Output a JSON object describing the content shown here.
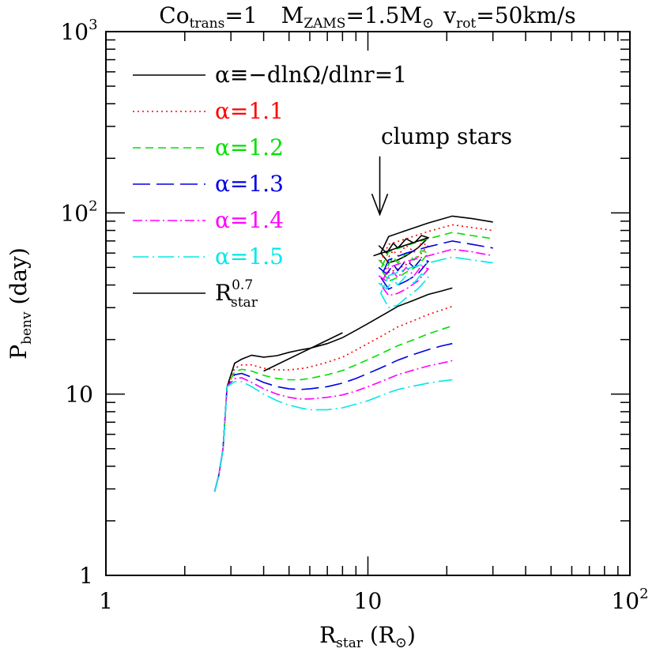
{
  "chart_data": {
    "type": "line",
    "title": {
      "co_prefix": "Co",
      "co_sub": "trans",
      "co_value": "=1",
      "m_prefix": "M",
      "m_sub": "ZAMS",
      "m_value": "=1.5M",
      "m_sun": "⊙",
      "v_prefix": "v",
      "v_sub": "rot",
      "v_value": "=50km/s"
    },
    "xlabel": {
      "main": "R",
      "sub": "star",
      "unit_open": " (R",
      "unit_sun": "⊙",
      "unit_close": ")"
    },
    "ylabel": {
      "main": "P",
      "sub": "benv",
      "unit": " (day)"
    },
    "x_scale": "log",
    "y_scale": "log",
    "xlim": [
      1,
      100
    ],
    "ylim": [
      1,
      1000
    ],
    "x_ticks": [
      {
        "value": 1,
        "base": "1",
        "exp": ""
      },
      {
        "value": 10,
        "base": "10",
        "exp": ""
      },
      {
        "value": 100,
        "base": "10",
        "exp": "2"
      }
    ],
    "y_ticks": [
      {
        "value": 1,
        "base": "1",
        "exp": ""
      },
      {
        "value": 10,
        "base": "10",
        "exp": ""
      },
      {
        "value": 100,
        "base": "10",
        "exp": "2"
      },
      {
        "value": 1000,
        "base": "10",
        "exp": "3"
      }
    ],
    "grid": false,
    "legend_position": "top-left",
    "annotation": {
      "text": "clump stars",
      "arrow_from": [
        11.1,
        205
      ],
      "arrow_to": [
        11.1,
        98
      ]
    },
    "series": [
      {
        "name": "α≡−dlnΩ/dlnr=1",
        "color": "#000000",
        "dash": "none",
        "rgb": [
          [
            2.6,
            2.9
          ],
          [
            2.7,
            3.6
          ],
          [
            2.8,
            5.0
          ],
          [
            2.9,
            11.0
          ],
          [
            3.1,
            14.8
          ],
          [
            3.3,
            15.6
          ],
          [
            3.6,
            16.4
          ],
          [
            4.0,
            16.0
          ],
          [
            4.5,
            16.3
          ],
          [
            5.0,
            17.0
          ],
          [
            5.5,
            17.5
          ],
          [
            6.0,
            17.9
          ],
          [
            7.0,
            19.0
          ],
          [
            8.0,
            20.5
          ],
          [
            9.0,
            22.5
          ],
          [
            10.0,
            24.5
          ],
          [
            11.0,
            26.5
          ],
          [
            12.0,
            28.5
          ],
          [
            13.0,
            30.5
          ],
          [
            15.0,
            33.0
          ],
          [
            17.0,
            35.5
          ],
          [
            19.0,
            37.0
          ],
          [
            21.0,
            38.5
          ]
        ],
        "clump": [
          [
            11.0,
            66.0
          ],
          [
            11.8,
            60.0
          ],
          [
            12.5,
            68.0
          ],
          [
            13.0,
            64.0
          ],
          [
            14.0,
            72.0
          ],
          [
            15.0,
            68.0
          ],
          [
            16.0,
            75.0
          ],
          [
            17.0,
            73.0
          ],
          [
            15.5,
            64.0
          ],
          [
            14.0,
            58.0
          ],
          [
            13.0,
            55.0
          ],
          [
            12.0,
            53.0
          ],
          [
            11.2,
            60.0
          ],
          [
            12.0,
            74.0
          ],
          [
            14.0,
            80.0
          ],
          [
            17.0,
            88.0
          ],
          [
            21.0,
            96.0
          ],
          [
            25.0,
            93.0
          ],
          [
            30.0,
            89.0
          ]
        ]
      },
      {
        "name": "α=1.1",
        "color": "#ff0000",
        "dash": "2 4",
        "rgb": [
          [
            2.6,
            2.9
          ],
          [
            2.7,
            3.6
          ],
          [
            2.8,
            5.0
          ],
          [
            2.9,
            11.0
          ],
          [
            3.1,
            13.9
          ],
          [
            3.3,
            14.5
          ],
          [
            3.6,
            14.5
          ],
          [
            4.0,
            13.9
          ],
          [
            4.5,
            13.6
          ],
          [
            5.0,
            13.6
          ],
          [
            5.5,
            13.8
          ],
          [
            6.0,
            14.1
          ],
          [
            7.0,
            15.0
          ],
          [
            8.0,
            16.0
          ],
          [
            9.0,
            17.5
          ],
          [
            10.0,
            19.0
          ],
          [
            11.0,
            20.5
          ],
          [
            12.0,
            22.0
          ],
          [
            13.0,
            23.5
          ],
          [
            15.0,
            25.5
          ],
          [
            17.0,
            27.5
          ],
          [
            19.0,
            29.0
          ],
          [
            21.0,
            30.5
          ]
        ],
        "clump": [
          [
            11.0,
            60.0
          ],
          [
            11.8,
            55.0
          ],
          [
            12.5,
            62.0
          ],
          [
            13.0,
            58.0
          ],
          [
            14.0,
            66.0
          ],
          [
            15.0,
            61.0
          ],
          [
            16.0,
            68.0
          ],
          [
            17.0,
            66.0
          ],
          [
            15.5,
            57.0
          ],
          [
            14.0,
            52.0
          ],
          [
            13.0,
            49.0
          ],
          [
            12.0,
            47.0
          ],
          [
            11.2,
            54.0
          ],
          [
            12.0,
            67.0
          ],
          [
            14.0,
            72.0
          ],
          [
            17.0,
            79.0
          ],
          [
            21.0,
            86.0
          ],
          [
            25.0,
            83.0
          ],
          [
            30.0,
            80.0
          ]
        ]
      },
      {
        "name": "α=1.2",
        "color": "#00e000",
        "dash": "10 6",
        "rgb": [
          [
            2.6,
            2.9
          ],
          [
            2.7,
            3.6
          ],
          [
            2.8,
            5.0
          ],
          [
            2.9,
            11.0
          ],
          [
            3.1,
            13.3
          ],
          [
            3.3,
            13.7
          ],
          [
            3.6,
            13.4
          ],
          [
            4.0,
            12.7
          ],
          [
            4.5,
            12.2
          ],
          [
            5.0,
            12.0
          ],
          [
            5.5,
            12.0
          ],
          [
            6.0,
            12.2
          ],
          [
            7.0,
            12.8
          ],
          [
            8.0,
            13.5
          ],
          [
            9.0,
            14.5
          ],
          [
            10.0,
            15.5
          ],
          [
            11.0,
            16.5
          ],
          [
            12.0,
            17.5
          ],
          [
            13.0,
            18.5
          ],
          [
            15.0,
            20.0
          ],
          [
            17.0,
            21.5
          ],
          [
            19.0,
            22.7
          ],
          [
            21.0,
            23.8
          ]
        ],
        "clump": [
          [
            11.0,
            55.0
          ],
          [
            11.8,
            50.0
          ],
          [
            12.5,
            57.0
          ],
          [
            13.0,
            53.0
          ],
          [
            14.0,
            60.0
          ],
          [
            15.0,
            55.0
          ],
          [
            16.0,
            62.0
          ],
          [
            17.0,
            60.0
          ],
          [
            15.5,
            51.0
          ],
          [
            14.0,
            47.0
          ],
          [
            13.0,
            44.0
          ],
          [
            12.0,
            42.0
          ],
          [
            11.2,
            49.0
          ],
          [
            12.0,
            61.0
          ],
          [
            14.0,
            66.0
          ],
          [
            17.0,
            72.0
          ],
          [
            21.0,
            78.0
          ],
          [
            25.0,
            75.0
          ],
          [
            30.0,
            72.0
          ]
        ]
      },
      {
        "name": "α=1.3",
        "color": "#0000e0",
        "dash": "22 8",
        "rgb": [
          [
            2.6,
            2.9
          ],
          [
            2.7,
            3.6
          ],
          [
            2.8,
            5.0
          ],
          [
            2.9,
            11.0
          ],
          [
            3.1,
            12.8
          ],
          [
            3.3,
            13.0
          ],
          [
            3.6,
            12.4
          ],
          [
            4.0,
            11.6
          ],
          [
            4.5,
            11.0
          ],
          [
            5.0,
            10.7
          ],
          [
            5.5,
            10.6
          ],
          [
            6.0,
            10.7
          ],
          [
            7.0,
            11.0
          ],
          [
            8.0,
            11.5
          ],
          [
            9.0,
            12.2
          ],
          [
            10.0,
            13.0
          ],
          [
            11.0,
            13.8
          ],
          [
            12.0,
            14.6
          ],
          [
            13.0,
            15.4
          ],
          [
            15.0,
            16.6
          ],
          [
            17.0,
            17.6
          ],
          [
            19.0,
            18.4
          ],
          [
            21.0,
            19.0
          ]
        ],
        "clump": [
          [
            11.0,
            50.0
          ],
          [
            11.8,
            46.0
          ],
          [
            12.5,
            52.0
          ],
          [
            13.0,
            48.0
          ],
          [
            14.0,
            55.0
          ],
          [
            15.0,
            50.0
          ],
          [
            16.0,
            56.0
          ],
          [
            17.0,
            54.0
          ],
          [
            15.5,
            46.0
          ],
          [
            14.0,
            42.0
          ],
          [
            13.0,
            40.0
          ],
          [
            12.0,
            38.0
          ],
          [
            11.2,
            44.0
          ],
          [
            12.0,
            55.0
          ],
          [
            14.0,
            60.0
          ],
          [
            17.0,
            65.0
          ],
          [
            21.0,
            70.0
          ],
          [
            25.0,
            67.0
          ],
          [
            30.0,
            64.0
          ]
        ]
      },
      {
        "name": "α=1.4",
        "color": "#ff00ff",
        "dash": "12 4 2 4",
        "rgb": [
          [
            2.6,
            2.9
          ],
          [
            2.7,
            3.6
          ],
          [
            2.8,
            5.0
          ],
          [
            2.9,
            11.0
          ],
          [
            3.1,
            12.2
          ],
          [
            3.3,
            12.3
          ],
          [
            3.6,
            11.6
          ],
          [
            4.0,
            10.7
          ],
          [
            4.5,
            10.0
          ],
          [
            5.0,
            9.6
          ],
          [
            5.5,
            9.4
          ],
          [
            6.0,
            9.4
          ],
          [
            7.0,
            9.6
          ],
          [
            8.0,
            9.9
          ],
          [
            9.0,
            10.4
          ],
          [
            10.0,
            11.0
          ],
          [
            11.0,
            11.6
          ],
          [
            12.0,
            12.2
          ],
          [
            13.0,
            12.8
          ],
          [
            15.0,
            13.6
          ],
          [
            17.0,
            14.3
          ],
          [
            19.0,
            14.8
          ],
          [
            21.0,
            15.3
          ]
        ],
        "clump": [
          [
            11.0,
            45.0
          ],
          [
            11.8,
            42.0
          ],
          [
            12.5,
            47.0
          ],
          [
            13.0,
            44.0
          ],
          [
            14.0,
            50.0
          ],
          [
            15.0,
            45.0
          ],
          [
            16.0,
            51.0
          ],
          [
            17.0,
            49.0
          ],
          [
            15.5,
            42.0
          ],
          [
            14.0,
            38.0
          ],
          [
            13.0,
            36.0
          ],
          [
            12.0,
            35.0
          ],
          [
            11.2,
            40.0
          ],
          [
            12.0,
            50.0
          ],
          [
            14.0,
            54.0
          ],
          [
            17.0,
            58.0
          ],
          [
            21.0,
            63.0
          ],
          [
            25.0,
            61.0
          ],
          [
            30.0,
            58.0
          ]
        ]
      },
      {
        "name": "α=1.5",
        "color": "#00e8e8",
        "dash": "20 5 2 5",
        "rgb": [
          [
            2.6,
            2.9
          ],
          [
            2.7,
            3.6
          ],
          [
            2.8,
            5.0
          ],
          [
            2.9,
            11.0
          ],
          [
            3.1,
            11.7
          ],
          [
            3.3,
            11.7
          ],
          [
            3.6,
            11.0
          ],
          [
            4.0,
            10.0
          ],
          [
            4.5,
            9.2
          ],
          [
            5.0,
            8.7
          ],
          [
            5.5,
            8.4
          ],
          [
            6.0,
            8.2
          ],
          [
            7.0,
            8.2
          ],
          [
            8.0,
            8.4
          ],
          [
            9.0,
            8.8
          ],
          [
            10.0,
            9.2
          ],
          [
            11.0,
            9.7
          ],
          [
            12.0,
            10.2
          ],
          [
            13.0,
            10.6
          ],
          [
            15.0,
            11.1
          ],
          [
            17.0,
            11.5
          ],
          [
            19.0,
            11.8
          ],
          [
            21.0,
            12.0
          ]
        ],
        "clump": [
          [
            11.0,
            41.0
          ],
          [
            11.8,
            38.0
          ],
          [
            12.5,
            43.0
          ],
          [
            13.0,
            40.0
          ],
          [
            14.0,
            45.0
          ],
          [
            15.0,
            41.0
          ],
          [
            16.0,
            46.0
          ],
          [
            17.0,
            44.0
          ],
          [
            15.5,
            38.0
          ],
          [
            14.0,
            34.0
          ],
          [
            13.0,
            31.0
          ],
          [
            12.0,
            30.0
          ],
          [
            11.2,
            36.0
          ],
          [
            12.0,
            45.0
          ],
          [
            14.0,
            49.0
          ],
          [
            17.0,
            53.0
          ],
          [
            21.0,
            57.0
          ],
          [
            25.0,
            55.0
          ],
          [
            30.0,
            53.0
          ]
        ]
      }
    ],
    "power_law": {
      "label_main": "R",
      "label_sup": "0.7",
      "label_sub": "star",
      "color": "#000000",
      "segments": [
        [
          [
            4.0,
            13.4
          ],
          [
            8.0,
            21.8
          ]
        ],
        [
          [
            10.5,
            58.0
          ],
          [
            17.0,
            73.0
          ]
        ]
      ]
    }
  }
}
